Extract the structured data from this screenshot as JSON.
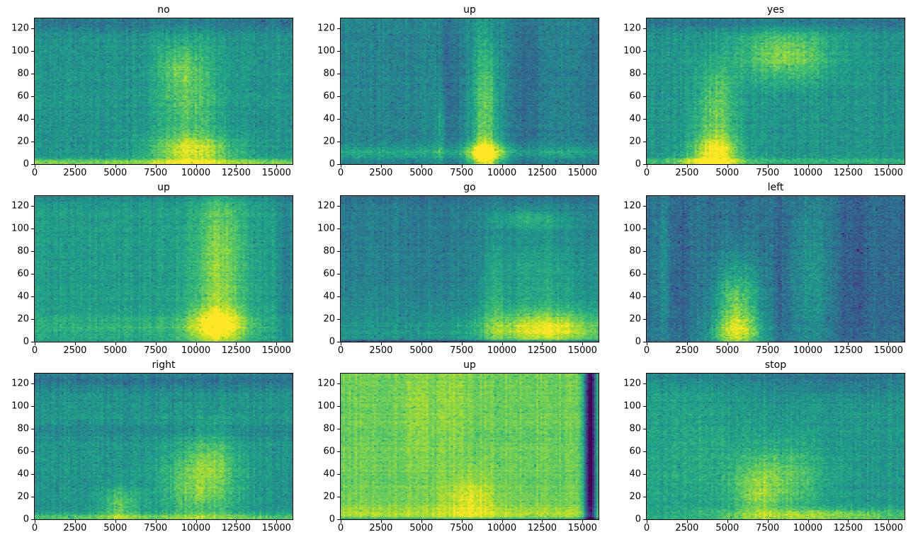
{
  "figure": {
    "background": "#ffffff",
    "colormap": "viridis",
    "grid": {
      "rows": 3,
      "cols": 3
    },
    "viridis_anchors": [
      [
        68,
        1,
        84
      ],
      [
        72,
        36,
        117
      ],
      [
        65,
        68,
        135
      ],
      [
        53,
        95,
        141
      ],
      [
        42,
        120,
        142
      ],
      [
        33,
        145,
        140
      ],
      [
        34,
        168,
        132
      ],
      [
        66,
        190,
        113
      ],
      [
        122,
        209,
        81
      ],
      [
        189,
        223,
        38
      ],
      [
        253,
        231,
        37
      ]
    ]
  },
  "axes": {
    "x_label": "",
    "y_label": "",
    "x_ticks": [
      0,
      2500,
      5000,
      7500,
      10000,
      12500,
      15000
    ],
    "y_ticks": [
      0,
      20,
      40,
      60,
      80,
      100,
      120
    ],
    "x_range": [
      0,
      16000
    ],
    "y_range": [
      0,
      129
    ],
    "spine_color": "#000000"
  },
  "chart_data": [
    {
      "type": "heatmap",
      "subtype": "audio-spectrogram",
      "title": "no",
      "x_range": [
        0,
        16000
      ],
      "y_range": [
        0,
        129
      ],
      "x_ticks": [
        0,
        2500,
        5000,
        7500,
        10000,
        12500,
        15000
      ],
      "y_ticks": [
        0,
        20,
        40,
        60,
        80,
        100,
        120
      ],
      "base_level": 0.52,
      "noise": 0.07,
      "seed": 11,
      "energy_regions": [
        {
          "cx": 8000,
          "cy": 124,
          "sx": 30000,
          "sy": 5,
          "dv": -0.13
        },
        {
          "cx": 8000,
          "cy": 1,
          "sx": 30000,
          "sy": 2.5,
          "dv": 0.28
        },
        {
          "cx": 9600,
          "cy": 55,
          "sx": 1300,
          "sy": 38,
          "dv": 0.22
        },
        {
          "cx": 9900,
          "cy": 12,
          "sx": 1900,
          "sy": 9,
          "dv": 0.33
        },
        {
          "cx": 9000,
          "cy": 85,
          "sx": 900,
          "sy": 12,
          "dv": 0.12
        }
      ]
    },
    {
      "type": "heatmap",
      "subtype": "audio-spectrogram",
      "title": "up",
      "x_range": [
        0,
        16000
      ],
      "y_range": [
        0,
        129
      ],
      "x_ticks": [
        0,
        2500,
        5000,
        7500,
        10000,
        12500,
        15000
      ],
      "y_ticks": [
        0,
        20,
        40,
        60,
        80,
        100,
        120
      ],
      "base_level": 0.45,
      "noise": 0.07,
      "seed": 22,
      "energy_regions": [
        {
          "cx": 9000,
          "cy": 45,
          "sx": 550,
          "sy": 55,
          "dv": 0.33
        },
        {
          "cx": 9000,
          "cy": 8,
          "sx": 800,
          "sy": 9,
          "dv": 0.42
        },
        {
          "cx": 8000,
          "cy": 10,
          "sx": 30000,
          "sy": 4,
          "dv": 0.15
        },
        {
          "cx": 6800,
          "cy": 70,
          "sx": 450,
          "sy": 60,
          "dv": -0.09
        },
        {
          "cx": 11600,
          "cy": 70,
          "sx": 800,
          "sy": 60,
          "dv": -0.09
        },
        {
          "cx": 6200,
          "cy": 25,
          "sx": 220,
          "sy": 30,
          "dv": 0.14
        },
        {
          "cx": 15500,
          "cy": 60,
          "sx": 400,
          "sy": 60,
          "dv": -0.07
        }
      ]
    },
    {
      "type": "heatmap",
      "subtype": "audio-spectrogram",
      "title": "yes",
      "x_range": [
        0,
        16000
      ],
      "y_range": [
        0,
        129
      ],
      "x_ticks": [
        0,
        2500,
        5000,
        7500,
        10000,
        12500,
        15000
      ],
      "y_ticks": [
        0,
        20,
        40,
        60,
        80,
        100,
        120
      ],
      "base_level": 0.52,
      "noise": 0.07,
      "seed": 33,
      "energy_regions": [
        {
          "cx": 8000,
          "cy": 125,
          "sx": 30000,
          "sy": 5,
          "dv": -0.13
        },
        {
          "cx": 8600,
          "cy": 96,
          "sx": 1900,
          "sy": 16,
          "dv": 0.3
        },
        {
          "cx": 4300,
          "cy": 45,
          "sx": 900,
          "sy": 30,
          "dv": 0.26
        },
        {
          "cx": 4200,
          "cy": 10,
          "sx": 1100,
          "sy": 10,
          "dv": 0.38
        },
        {
          "cx": 8000,
          "cy": 2,
          "sx": 30000,
          "sy": 2.5,
          "dv": 0.15
        },
        {
          "cx": 3600,
          "cy": 1,
          "sx": 1500,
          "sy": 3,
          "dv": 0.2
        }
      ]
    },
    {
      "type": "heatmap",
      "subtype": "audio-spectrogram",
      "title": "up",
      "x_range": [
        0,
        16000
      ],
      "y_range": [
        0,
        129
      ],
      "x_ticks": [
        0,
        2500,
        5000,
        7500,
        10000,
        12500,
        15000
      ],
      "y_ticks": [
        0,
        20,
        40,
        60,
        80,
        100,
        120
      ],
      "base_level": 0.55,
      "noise": 0.06,
      "seed": 44,
      "energy_regions": [
        {
          "cx": 11500,
          "cy": 65,
          "sx": 1100,
          "sy": 55,
          "dv": 0.28
        },
        {
          "cx": 11300,
          "cy": 14,
          "sx": 1300,
          "sy": 12,
          "dv": 0.35
        },
        {
          "cx": 6000,
          "cy": 12,
          "sx": 8000,
          "sy": 8,
          "dv": 0.1
        },
        {
          "cx": 15700,
          "cy": 64,
          "sx": 280,
          "sy": 70,
          "dv": -0.14
        },
        {
          "cx": 8000,
          "cy": 127,
          "sx": 30000,
          "sy": 4,
          "dv": -0.08
        }
      ]
    },
    {
      "type": "heatmap",
      "subtype": "audio-spectrogram",
      "title": "go",
      "x_range": [
        0,
        16000
      ],
      "y_range": [
        0,
        129
      ],
      "x_ticks": [
        0,
        2500,
        5000,
        7500,
        10000,
        12500,
        15000
      ],
      "y_ticks": [
        0,
        20,
        40,
        60,
        80,
        100,
        120
      ],
      "base_level": 0.43,
      "noise": 0.06,
      "seed": 55,
      "energy_regions": [
        {
          "cx": 8000,
          "cy": 8,
          "sx": 30000,
          "sy": 18,
          "dv": 0.1
        },
        {
          "cx": 12800,
          "cy": 10,
          "sx": 2600,
          "sy": 11,
          "dv": 0.4
        },
        {
          "cx": 12500,
          "cy": 55,
          "sx": 2300,
          "sy": 35,
          "dv": 0.16
        },
        {
          "cx": 11800,
          "cy": 108,
          "sx": 1700,
          "sy": 6,
          "dv": 0.16
        },
        {
          "cx": 8000,
          "cy": 126,
          "sx": 30000,
          "sy": 5,
          "dv": -0.06
        },
        {
          "cx": 9500,
          "cy": 30,
          "sx": 500,
          "sy": 40,
          "dv": 0.1
        },
        {
          "cx": 8000,
          "cy": 0,
          "sx": 30000,
          "sy": 0.7,
          "dv": -0.3
        }
      ]
    },
    {
      "type": "heatmap",
      "subtype": "audio-spectrogram",
      "title": "left",
      "x_range": [
        0,
        16000
      ],
      "y_range": [
        0,
        129
      ],
      "x_ticks": [
        0,
        2500,
        5000,
        7500,
        10000,
        12500,
        15000
      ],
      "y_ticks": [
        0,
        20,
        40,
        60,
        80,
        100,
        120
      ],
      "base_level": 0.38,
      "noise": 0.08,
      "seed": 66,
      "energy_regions": [
        {
          "cx": 5600,
          "cy": 30,
          "sx": 1000,
          "sy": 28,
          "dv": 0.4
        },
        {
          "cx": 5600,
          "cy": 8,
          "sx": 1200,
          "sy": 10,
          "dv": 0.3
        },
        {
          "cx": 10200,
          "cy": 55,
          "sx": 900,
          "sy": 55,
          "dv": 0.13
        },
        {
          "cx": 2100,
          "cy": 60,
          "sx": 350,
          "sy": 60,
          "dv": -0.08
        },
        {
          "cx": 8300,
          "cy": 60,
          "sx": 350,
          "sy": 60,
          "dv": -0.07
        },
        {
          "cx": 13000,
          "cy": 55,
          "sx": 900,
          "sy": 60,
          "dv": -0.09
        },
        {
          "cx": 900,
          "cy": 60,
          "sx": 280,
          "sy": 50,
          "dv": 0.1
        },
        {
          "cx": 15500,
          "cy": 60,
          "sx": 500,
          "sy": 60,
          "dv": -0.06
        }
      ]
    },
    {
      "type": "heatmap",
      "subtype": "audio-spectrogram",
      "title": "right",
      "x_range": [
        0,
        16000
      ],
      "y_range": [
        0,
        129
      ],
      "x_ticks": [
        0,
        2500,
        5000,
        7500,
        10000,
        12500,
        15000
      ],
      "y_ticks": [
        0,
        20,
        40,
        60,
        80,
        100,
        120
      ],
      "base_level": 0.52,
      "noise": 0.07,
      "seed": 77,
      "energy_regions": [
        {
          "cx": 8000,
          "cy": 123,
          "sx": 30000,
          "sy": 7,
          "dv": -0.13
        },
        {
          "cx": 10300,
          "cy": 30,
          "sx": 1700,
          "sy": 24,
          "dv": 0.28
        },
        {
          "cx": 5300,
          "cy": 12,
          "sx": 800,
          "sy": 11,
          "dv": 0.24
        },
        {
          "cx": 8000,
          "cy": 1,
          "sx": 30000,
          "sy": 2.5,
          "dv": 0.22
        },
        {
          "cx": 8000,
          "cy": 78,
          "sx": 30000,
          "sy": 3.5,
          "dv": -0.07
        },
        {
          "cx": 11000,
          "cy": 55,
          "sx": 900,
          "sy": 20,
          "dv": 0.12
        }
      ]
    },
    {
      "type": "heatmap",
      "subtype": "audio-spectrogram",
      "title": "up",
      "x_range": [
        0,
        16000
      ],
      "y_range": [
        0,
        129
      ],
      "x_ticks": [
        0,
        2500,
        5000,
        7500,
        10000,
        12500,
        15000
      ],
      "y_ticks": [
        0,
        20,
        40,
        60,
        80,
        100,
        120
      ],
      "base_level": 0.78,
      "noise": 0.05,
      "seed": 88,
      "energy_regions": [
        {
          "cx": 8100,
          "cy": 18,
          "sx": 1100,
          "sy": 14,
          "dv": 0.16
        },
        {
          "cx": 8000,
          "cy": 4,
          "sx": 30000,
          "sy": 5,
          "dv": 0.1
        },
        {
          "cx": 15550,
          "cy": 64,
          "sx": 260,
          "sy": 200,
          "dv": -0.85
        },
        {
          "cx": 4800,
          "cy": 95,
          "sx": 500,
          "sy": 35,
          "dv": 0.07
        },
        {
          "cx": 7000,
          "cy": 100,
          "sx": 600,
          "sy": 30,
          "dv": 0.06
        },
        {
          "cx": 8000,
          "cy": 0,
          "sx": 30000,
          "sy": 0.7,
          "dv": -0.25
        }
      ]
    },
    {
      "type": "heatmap",
      "subtype": "audio-spectrogram",
      "title": "stop",
      "x_range": [
        0,
        16000
      ],
      "y_range": [
        0,
        129
      ],
      "x_ticks": [
        0,
        2500,
        5000,
        7500,
        10000,
        12500,
        15000
      ],
      "y_ticks": [
        0,
        20,
        40,
        60,
        80,
        100,
        120
      ],
      "base_level": 0.53,
      "noise": 0.07,
      "seed": 99,
      "energy_regions": [
        {
          "cx": 8000,
          "cy": 126,
          "sx": 30000,
          "sy": 5,
          "dv": -0.1
        },
        {
          "cx": 12500,
          "cy": 118,
          "sx": 4000,
          "sy": 9,
          "dv": -0.08
        },
        {
          "cx": 8100,
          "cy": 35,
          "sx": 1900,
          "sy": 22,
          "dv": 0.24
        },
        {
          "cx": 11000,
          "cy": 3,
          "sx": 5200,
          "sy": 4,
          "dv": 0.3
        },
        {
          "cx": 2800,
          "cy": 55,
          "sx": 2200,
          "sy": 45,
          "dv": 0.07
        },
        {
          "cx": 6800,
          "cy": 20,
          "sx": 900,
          "sy": 15,
          "dv": 0.15
        }
      ]
    }
  ]
}
